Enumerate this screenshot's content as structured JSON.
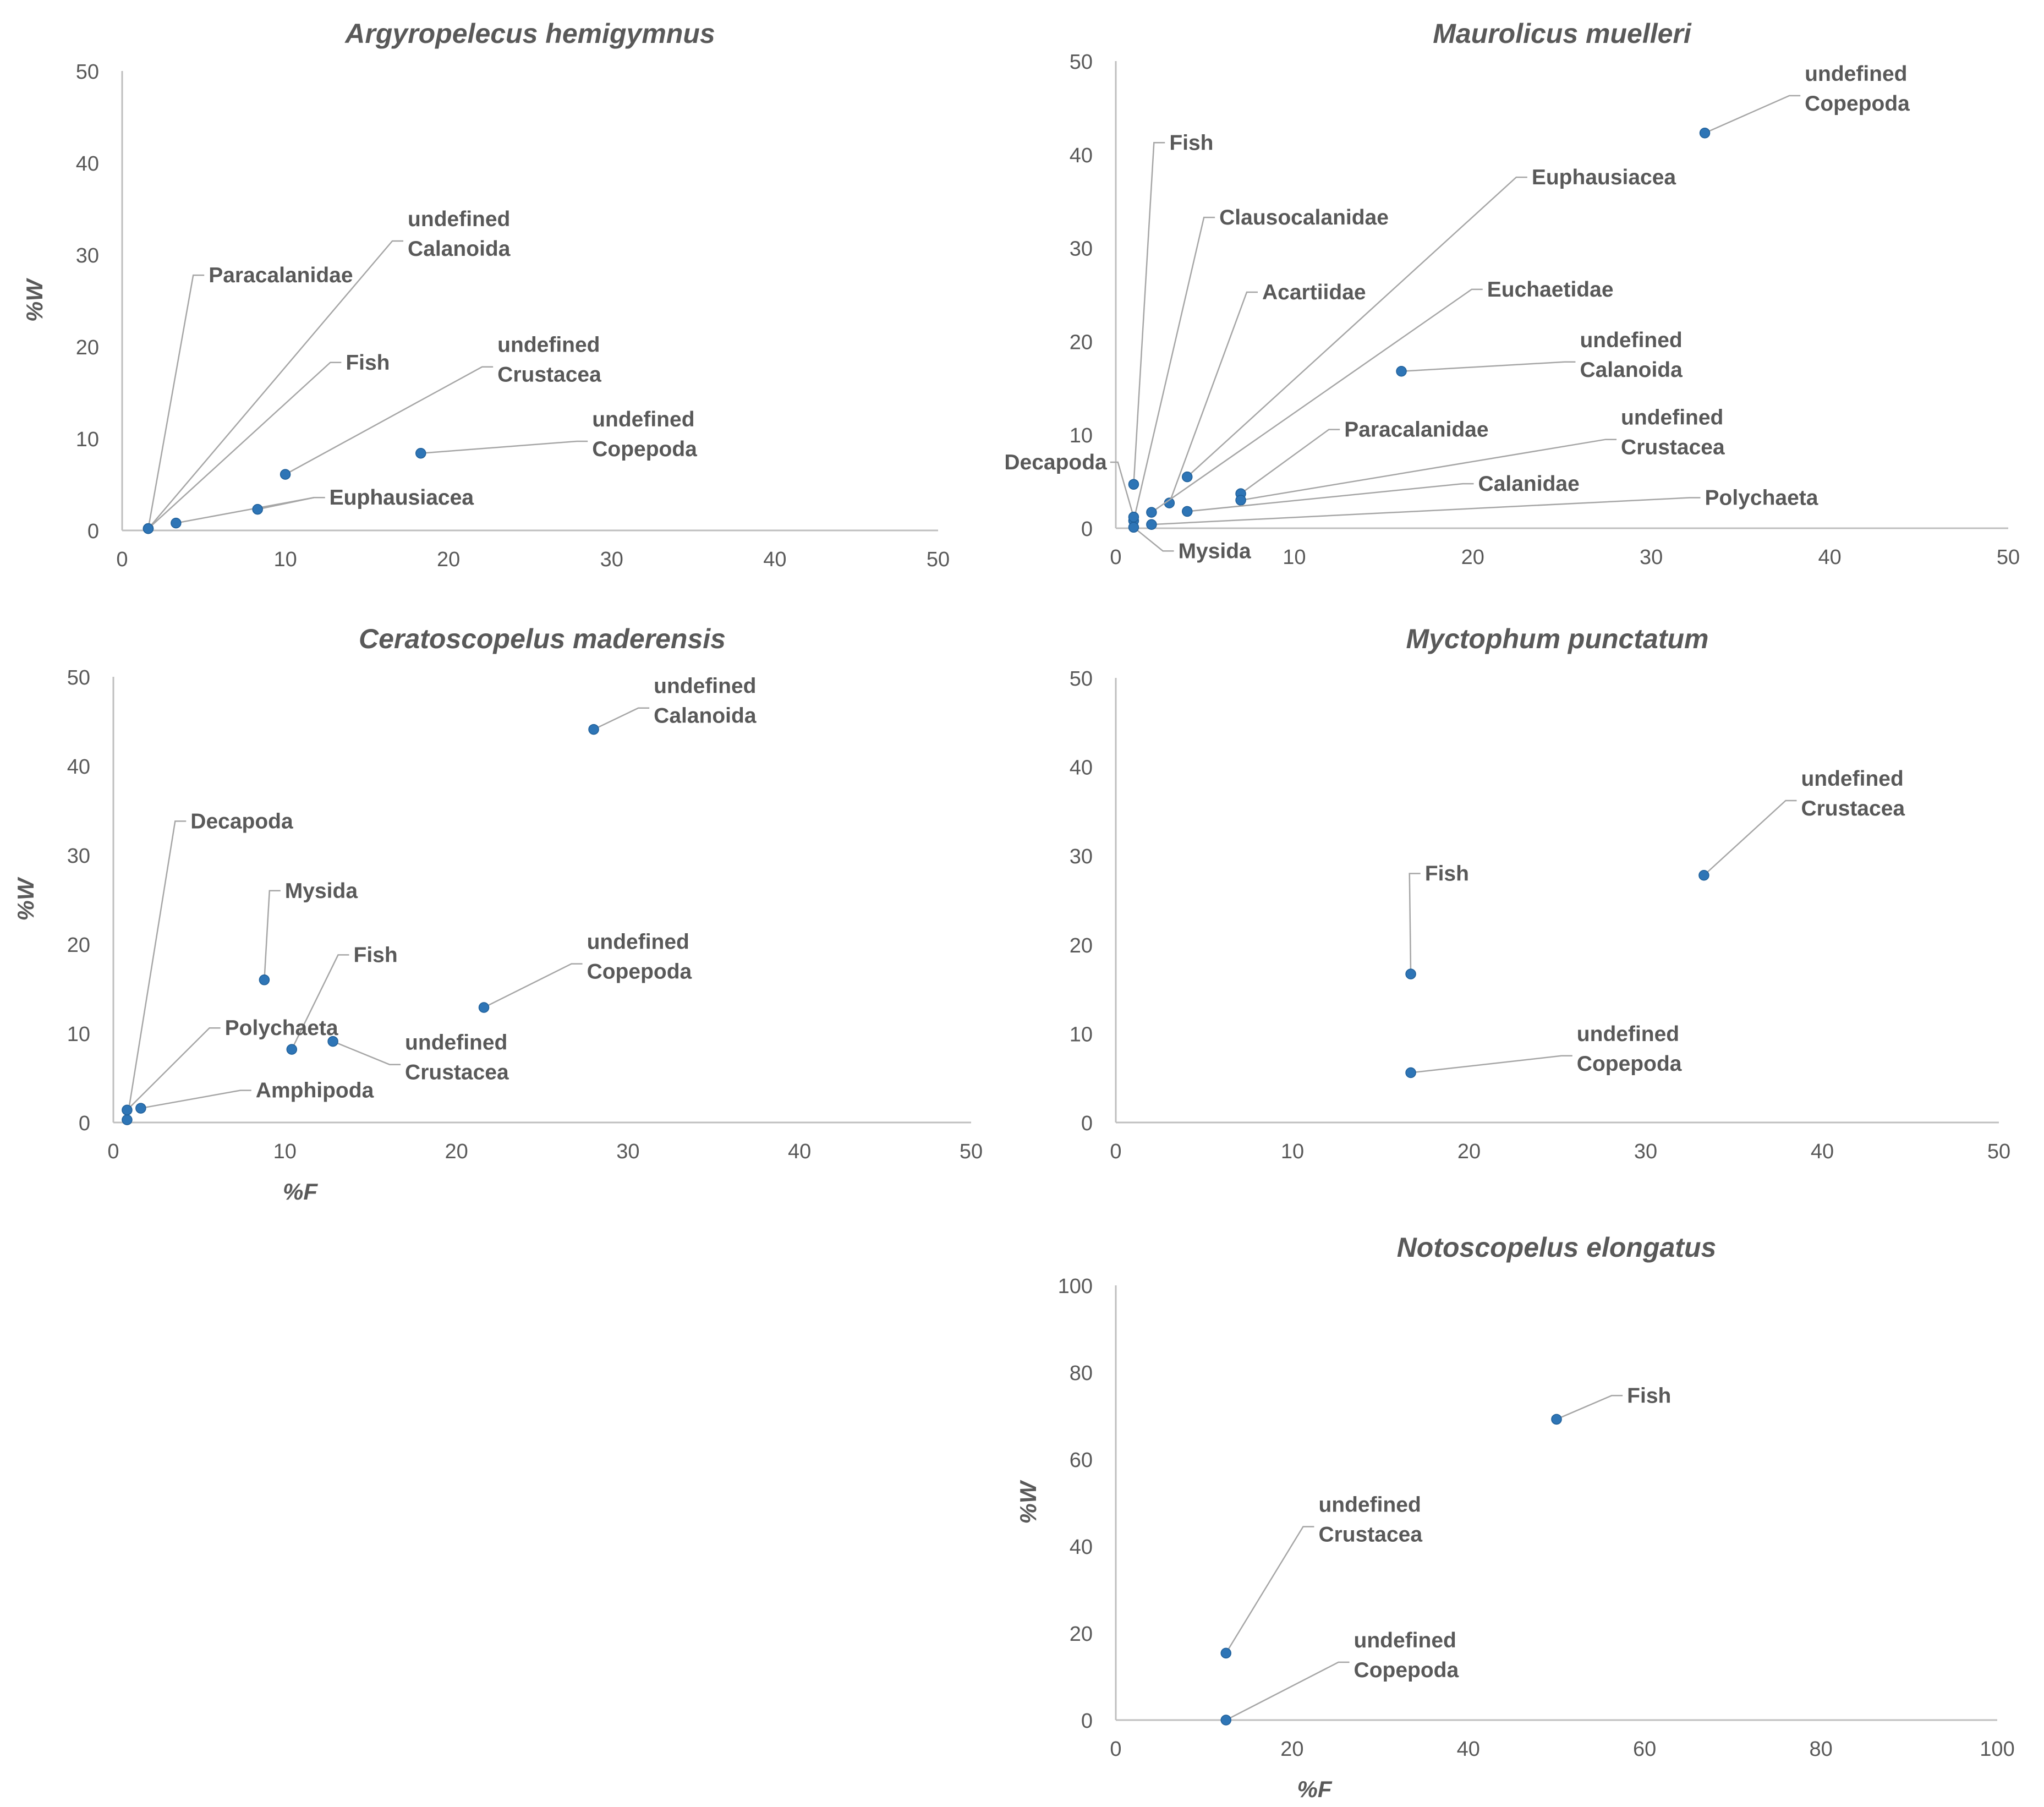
{
  "colors": {
    "point": "#2e75b6",
    "text": "#595959",
    "axis": "#bfbfbf",
    "leader": "#a6a6a6"
  },
  "chart_data": [
    {
      "type": "scatter",
      "title": "Argyropelecus hemigymnus",
      "xlabel": "",
      "ylabel": "%W",
      "xlim": [
        0,
        50
      ],
      "ylim": [
        0,
        50
      ],
      "xticks": [
        "0",
        "10",
        "20",
        "30",
        "40",
        "50"
      ],
      "yticks": [
        "0",
        "10",
        "20",
        "30",
        "40",
        "50"
      ],
      "points": [
        {
          "label": [
            "Paracalanidae"
          ],
          "x": 1.6,
          "y": 0.2,
          "lx": 5.3,
          "ly": 27
        },
        {
          "label": [
            "undefined",
            "Calanoida"
          ],
          "x": 1.6,
          "y": 0.2,
          "lx": 17.5,
          "ly": 31.5
        },
        {
          "label": [
            "Fish"
          ],
          "x": 1.6,
          "y": 0.2,
          "lx": 13.7,
          "ly": 17.5
        },
        {
          "label": [
            "Euphausiacea"
          ],
          "x": 3.3,
          "y": 0.8,
          "lx": 12.7,
          "ly": 2.8
        },
        {
          "label": [
            "undefined",
            "Crustacea"
          ],
          "x": 10.0,
          "y": 6.1,
          "lx": 23.0,
          "ly": 17.8
        },
        {
          "label": [
            "Euphausiacea"
          ],
          "x": 8.3,
          "y": 2.3,
          "lx": 12.7,
          "ly": 2.8
        },
        {
          "label": [
            "undefined",
            "Copepoda"
          ],
          "x": 18.3,
          "y": 8.4,
          "lx": 28.8,
          "ly": 9.7
        }
      ]
    },
    {
      "type": "scatter",
      "title": "Maurolicus muelleri",
      "xlabel": "",
      "ylabel": "",
      "xlim": [
        0,
        50
      ],
      "ylim": [
        0,
        50
      ],
      "xticks": [
        "0",
        "10",
        "20",
        "30",
        "40",
        "50"
      ],
      "yticks": [
        "0",
        "10",
        "20",
        "30",
        "40",
        "50"
      ],
      "points": [
        {
          "label": [
            "undefined",
            "Copepoda"
          ],
          "x": 33.0,
          "y": 42.3,
          "lx": 38.6,
          "ly": 46.3
        },
        {
          "label": [
            "Fish"
          ],
          "x": 1.0,
          "y": 4.7,
          "lx": 3.0,
          "ly": 40.5
        },
        {
          "label": [
            "Clausocalanidae"
          ],
          "x": 1.0,
          "y": 0.8,
          "lx": 5.8,
          "ly": 32.5
        },
        {
          "label": [
            "Acartiidae"
          ],
          "x": 3.0,
          "y": 2.7,
          "lx": 8.2,
          "ly": 24.5
        },
        {
          "label": [
            "Euphausiacea"
          ],
          "x": 4.0,
          "y": 5.5,
          "lx": 23.3,
          "ly": 36.8
        },
        {
          "label": [
            "Euchaetidae"
          ],
          "x": 2.0,
          "y": 1.7,
          "lx": 20.8,
          "ly": 24.8
        },
        {
          "label": [
            "undefined",
            "Calanoida"
          ],
          "x": 16.0,
          "y": 16.8,
          "lx": 26.0,
          "ly": 17.8
        },
        {
          "label": [
            "Paracalanidae"
          ],
          "x": 7.0,
          "y": 3.7,
          "lx": 12.8,
          "ly": 9.8
        },
        {
          "label": [
            "undefined",
            "Crustacea"
          ],
          "x": 7.0,
          "y": 3.0,
          "lx": 28.3,
          "ly": 9.5
        },
        {
          "label": [
            "Calanidae"
          ],
          "x": 4.0,
          "y": 1.8,
          "lx": 20.3,
          "ly": 4.0
        },
        {
          "label": [
            "Polychaeta"
          ],
          "x": 2.0,
          "y": 0.4,
          "lx": 33.0,
          "ly": 2.5
        },
        {
          "label": [
            "Decapoda"
          ],
          "x": 1.0,
          "y": 1.2,
          "lx": -0.5,
          "ly": 6.3
        },
        {
          "label": [
            "Mysida"
          ],
          "x": 1.0,
          "y": 0.1,
          "lx": 3.5,
          "ly": -3.2
        }
      ]
    },
    {
      "type": "scatter",
      "title": "Ceratoscopelus maderensis",
      "xlabel": "%F",
      "ylabel": "%W",
      "xlim": [
        0,
        50
      ],
      "ylim": [
        0,
        50
      ],
      "xticks": [
        "0",
        "10",
        "20",
        "30",
        "40",
        "50"
      ],
      "yticks": [
        "0",
        "10",
        "20",
        "30",
        "40",
        "50"
      ],
      "points": [
        {
          "label": [
            "undefined",
            "Calanoida"
          ],
          "x": 28.0,
          "y": 44.1,
          "lx": 31.5,
          "ly": 46.5
        },
        {
          "label": [
            "Decapoda"
          ],
          "x": 0.8,
          "y": 0.3,
          "lx": 4.5,
          "ly": 33.0
        },
        {
          "label": [
            "Mysida"
          ],
          "x": 8.8,
          "y": 16.0,
          "lx": 10.0,
          "ly": 25.2
        },
        {
          "label": [
            "Fish"
          ],
          "x": 10.4,
          "y": 8.2,
          "lx": 14.0,
          "ly": 18.0
        },
        {
          "label": [
            "undefined",
            "Copepoda"
          ],
          "x": 21.6,
          "y": 12.9,
          "lx": 27.6,
          "ly": 17.8
        },
        {
          "label": [
            "undefined",
            "Crustacea"
          ],
          "x": 12.8,
          "y": 9.1,
          "lx": 17.0,
          "ly": 6.5
        },
        {
          "label": [
            "Polychaeta"
          ],
          "x": 0.8,
          "y": 1.4,
          "lx": 6.5,
          "ly": 9.8
        },
        {
          "label": [
            "Amphipoda"
          ],
          "x": 1.6,
          "y": 1.6,
          "lx": 8.3,
          "ly": 2.8
        }
      ]
    },
    {
      "type": "scatter",
      "title": "Myctophum punctatum",
      "xlabel": "",
      "ylabel": "",
      "xlim": [
        0,
        50
      ],
      "ylim": [
        0,
        50
      ],
      "xticks": [
        "0",
        "10",
        "20",
        "30",
        "40",
        "50"
      ],
      "yticks": [
        "0",
        "10",
        "20",
        "30",
        "40",
        "50"
      ],
      "points": [
        {
          "label": [
            "undefined",
            "Crustacea"
          ],
          "x": 33.3,
          "y": 27.8,
          "lx": 38.8,
          "ly": 36.2
        },
        {
          "label": [
            "Fish"
          ],
          "x": 16.7,
          "y": 16.7,
          "lx": 17.5,
          "ly": 27.2
        },
        {
          "label": [
            "undefined",
            "Copepoda"
          ],
          "x": 16.7,
          "y": 5.6,
          "lx": 26.1,
          "ly": 7.5
        }
      ]
    },
    {
      "type": "scatter",
      "title": "Notoscopelus elongatus",
      "xlabel": "%F",
      "ylabel": "%W",
      "xlim": [
        0,
        100
      ],
      "ylim": [
        0,
        100
      ],
      "xticks": [
        "0",
        "20",
        "40",
        "60",
        "80",
        "100"
      ],
      "yticks": [
        "0",
        "20",
        "40",
        "60",
        "80",
        "100"
      ],
      "points": [
        {
          "label": [
            "Fish"
          ],
          "x": 50.0,
          "y": 69.2,
          "lx": 58.0,
          "ly": 73.0
        },
        {
          "label": [
            "undefined",
            "Crustacea"
          ],
          "x": 12.5,
          "y": 15.4,
          "lx": 23.0,
          "ly": 44.5
        },
        {
          "label": [
            "undefined",
            "Copepoda"
          ],
          "x": 12.5,
          "y": 0.0,
          "lx": 27.0,
          "ly": 13.3
        }
      ]
    }
  ]
}
